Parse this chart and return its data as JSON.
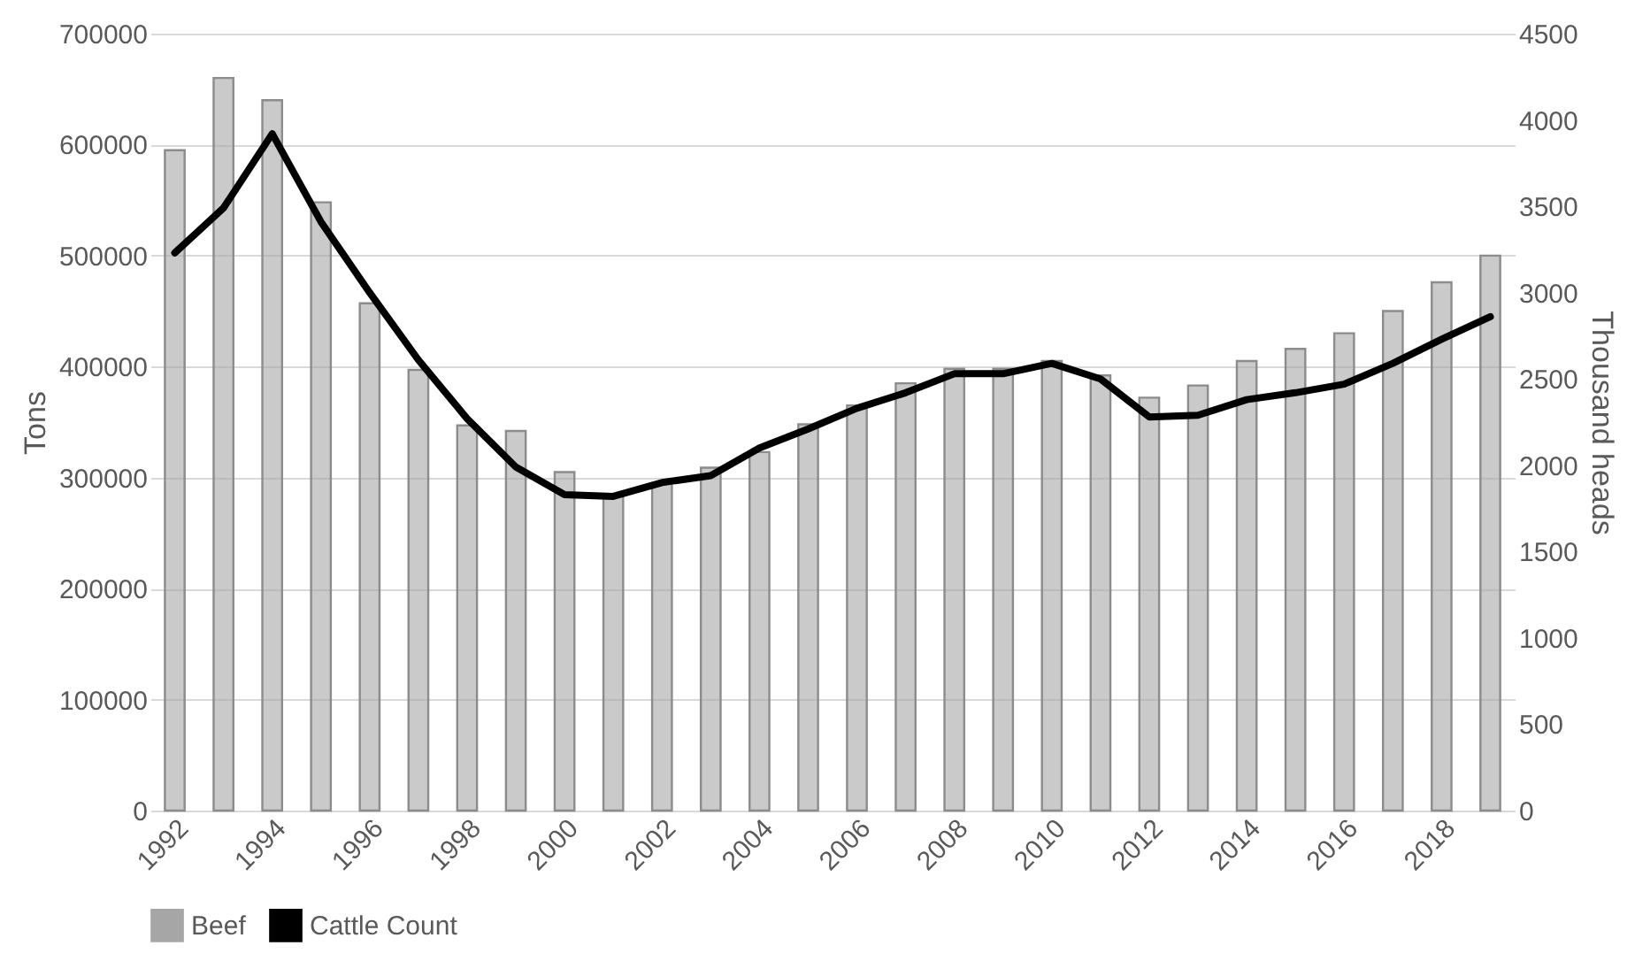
{
  "chart_data": {
    "type": "bar",
    "xlabel": null,
    "ylabel": "Tons",
    "y2label": "Thousand heads",
    "categories": [
      "1992",
      null,
      "1994",
      null,
      "1996",
      null,
      "1998",
      null,
      "2000",
      null,
      "2002",
      null,
      "2004",
      null,
      "2006",
      null,
      "2008",
      null,
      "2010",
      null,
      "2012",
      null,
      "2014",
      null,
      "2016",
      null,
      "2018",
      null
    ],
    "series": [
      {
        "name": "Beef",
        "color": "#a6a6a6",
        "values": [
          595000,
          660000,
          640000,
          548000,
          457000,
          397000,
          347000,
          342000,
          305000,
          285000,
          295000,
          309000,
          323000,
          348000,
          365000,
          385000,
          398000,
          398000,
          405000,
          392000,
          372000,
          383000,
          405000,
          416000,
          430000,
          450000,
          476000,
          500000
        ]
      },
      {
        "name": "Cattle Count",
        "type": "line",
        "axis": "y2",
        "color": "#000000",
        "values": [
          3230,
          3490,
          3920,
          3410,
          3000,
          2610,
          2270,
          1990,
          1830,
          1820,
          1900,
          1940,
          2100,
          2210,
          2330,
          2420,
          2530,
          2530,
          2590,
          2500,
          2280,
          2290,
          2380,
          2420,
          2470,
          2590,
          2730,
          2860
        ]
      }
    ],
    "ylim": [
      0,
      700000
    ],
    "yticks": [
      0,
      100000,
      200000,
      300000,
      400000,
      500000,
      600000,
      700000
    ],
    "y2lim": [
      0,
      4500
    ],
    "y2ticks": [
      0,
      500,
      1000,
      1500,
      2000,
      2500,
      3000,
      3500,
      4000,
      4500
    ],
    "grid": "y",
    "legend": "bottom",
    "line_style": "solid",
    "marker": "none"
  }
}
